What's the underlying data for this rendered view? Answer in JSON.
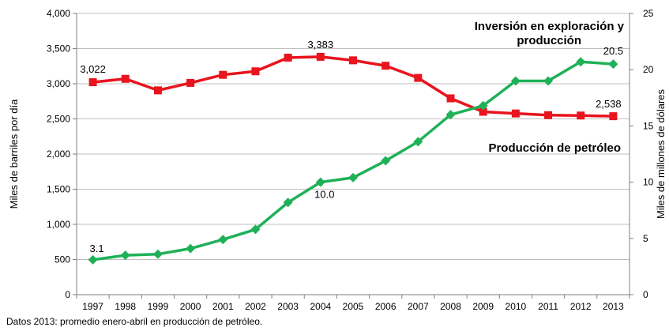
{
  "chart_data": {
    "type": "line",
    "title": "",
    "categories": [
      "1997",
      "1998",
      "1999",
      "2000",
      "2001",
      "2002",
      "2003",
      "2004",
      "2005",
      "2006",
      "2007",
      "2008",
      "2009",
      "2010",
      "2011",
      "2012",
      "2013"
    ],
    "y_left": {
      "label": "Miles de barriles por día",
      "min": 0,
      "max": 4000,
      "step": 500,
      "ticks": [
        "0",
        "500",
        "1,000",
        "1,500",
        "2,000",
        "2,500",
        "3,000",
        "3,500",
        "4,000"
      ]
    },
    "y_right": {
      "label": "Miles de millones de dólares",
      "min": 0,
      "max": 25,
      "step": 5,
      "ticks": [
        "0",
        "5",
        "10",
        "15",
        "20",
        "25"
      ]
    },
    "series": [
      {
        "name": "Producción de petróleo",
        "axis": "left",
        "color": "#e8141e",
        "marker": "square",
        "values": [
          3022,
          3070,
          2906,
          3012,
          3127,
          3177,
          3371,
          3383,
          3333,
          3256,
          3083,
          2792,
          2601,
          2577,
          2553,
          2548,
          2538
        ]
      },
      {
        "name": "Inversión en exploración y producción",
        "axis": "right",
        "color": "#1fb158",
        "marker": "diamond",
        "values": [
          3.1,
          3.5,
          3.6,
          4.1,
          4.9,
          5.8,
          8.2,
          10.0,
          10.4,
          11.9,
          13.6,
          16.0,
          16.8,
          19.0,
          19.0,
          20.7,
          20.5
        ]
      }
    ],
    "data_labels": [
      {
        "series": 0,
        "index": 0,
        "text": "3,022"
      },
      {
        "series": 0,
        "index": 7,
        "text": "3,383"
      },
      {
        "series": 0,
        "index": 16,
        "text": "2,538"
      },
      {
        "series": 1,
        "index": 0,
        "text": "3.1"
      },
      {
        "series": 1,
        "index": 7,
        "text": "10.0"
      },
      {
        "series": 1,
        "index": 16,
        "text": "20.5"
      }
    ],
    "series_labels": {
      "investment_line1": "Inversión en exploración y",
      "investment_line2": "producción",
      "production": "Producción de petróleo"
    },
    "grid": "horizontal",
    "legend": "none"
  },
  "footnote": "Datos 2013: promedio enero-abril en producción de petróleo."
}
